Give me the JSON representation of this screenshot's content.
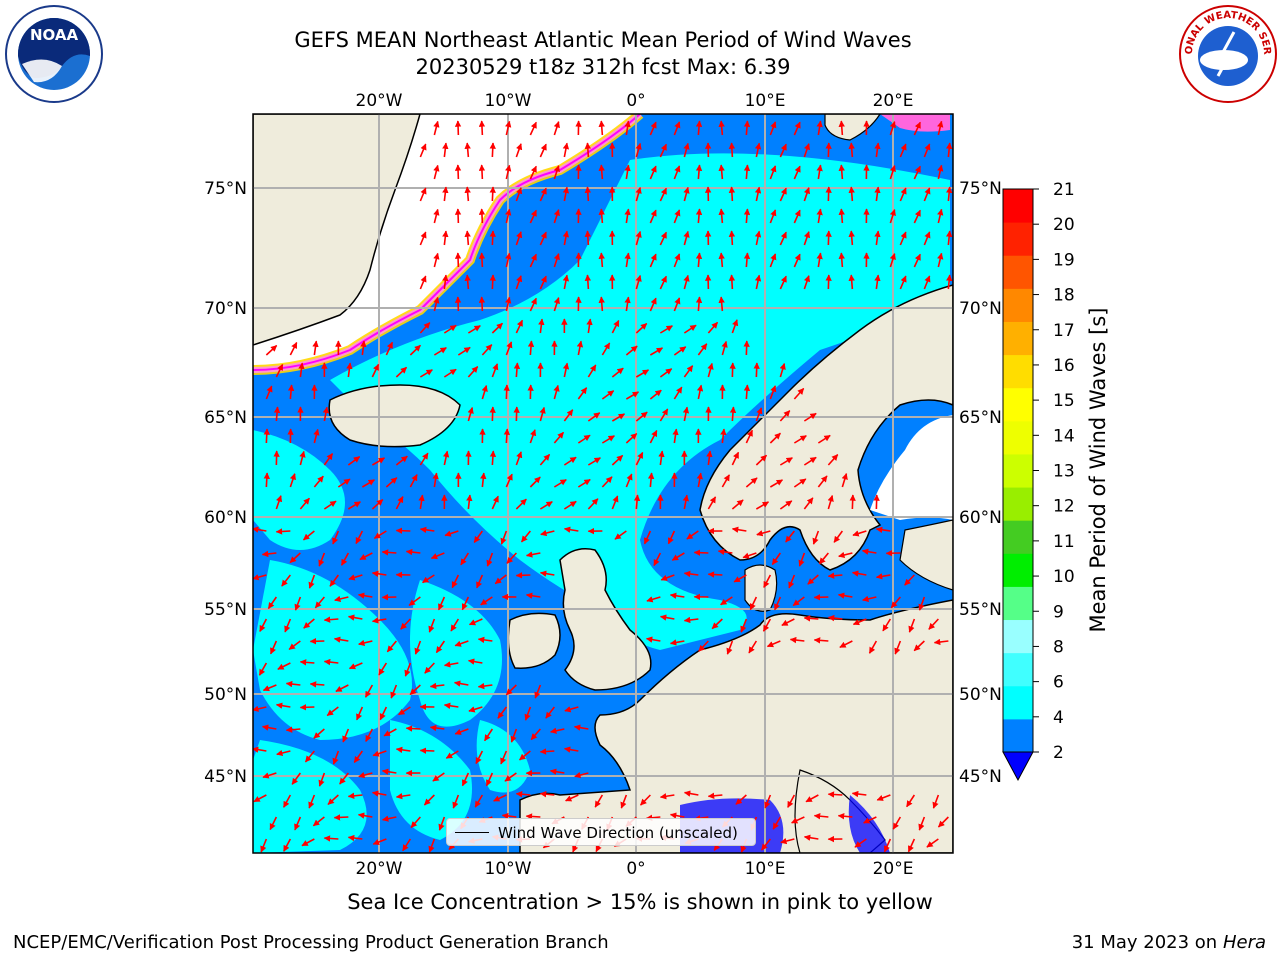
{
  "header": {
    "title_line1": "GEFS MEAN Northeast Atlantic Mean Period of Wind Waves",
    "title_line2": "20230529 t18z 312h fcst   Max: 6.39"
  },
  "logos": {
    "left": {
      "icon": "noaa-logo",
      "text": "NOAA"
    },
    "right": {
      "icon": "nws-logo",
      "text": "NATIONAL WEATHER SERVICE"
    }
  },
  "map": {
    "lon_ticks": [
      "20°W",
      "10°W",
      "0°",
      "10°E",
      "20°E"
    ],
    "lat_ticks": [
      "75°N",
      "70°N",
      "65°N",
      "60°N",
      "55°N",
      "50°N",
      "45°N"
    ],
    "colors": {
      "ocean_low": "#0080ff",
      "ocean_mid": "#00ffff",
      "land": "#efecdc",
      "ice": "#ffffff",
      "ice_edge": [
        "#ff00ff",
        "#ff99cc",
        "#ffd700"
      ],
      "arrows": "#ff0000",
      "grid": "#b0b0b0"
    }
  },
  "colorbar": {
    "title": "Mean Period of Wind Waves [s]",
    "labels": [
      "2",
      "4",
      "6",
      "8",
      "9",
      "10",
      "11",
      "12",
      "13",
      "14",
      "15",
      "16",
      "17",
      "18",
      "19",
      "20",
      "21"
    ],
    "colors": [
      "#0080ff",
      "#00ffff",
      "#40ffff",
      "#99ffff",
      "#55ff88",
      "#00ee00",
      "#44cc22",
      "#99ee00",
      "#ccff00",
      "#eeff00",
      "#ffff00",
      "#ffdd00",
      "#ffb000",
      "#ff8800",
      "#ff5500",
      "#ff2200",
      "#ff0000"
    ],
    "extend_color": "#0000ff"
  },
  "legend": {
    "label": "Wind Wave Direction (unscaled)"
  },
  "subtitle": "Sea Ice Concentration > 15% is shown in pink to yellow",
  "footer": {
    "left": "NCEP/EMC/Verification Post Processing Product Generation Branch",
    "right_date": "31 May 2023 on",
    "right_host": "Hera"
  }
}
